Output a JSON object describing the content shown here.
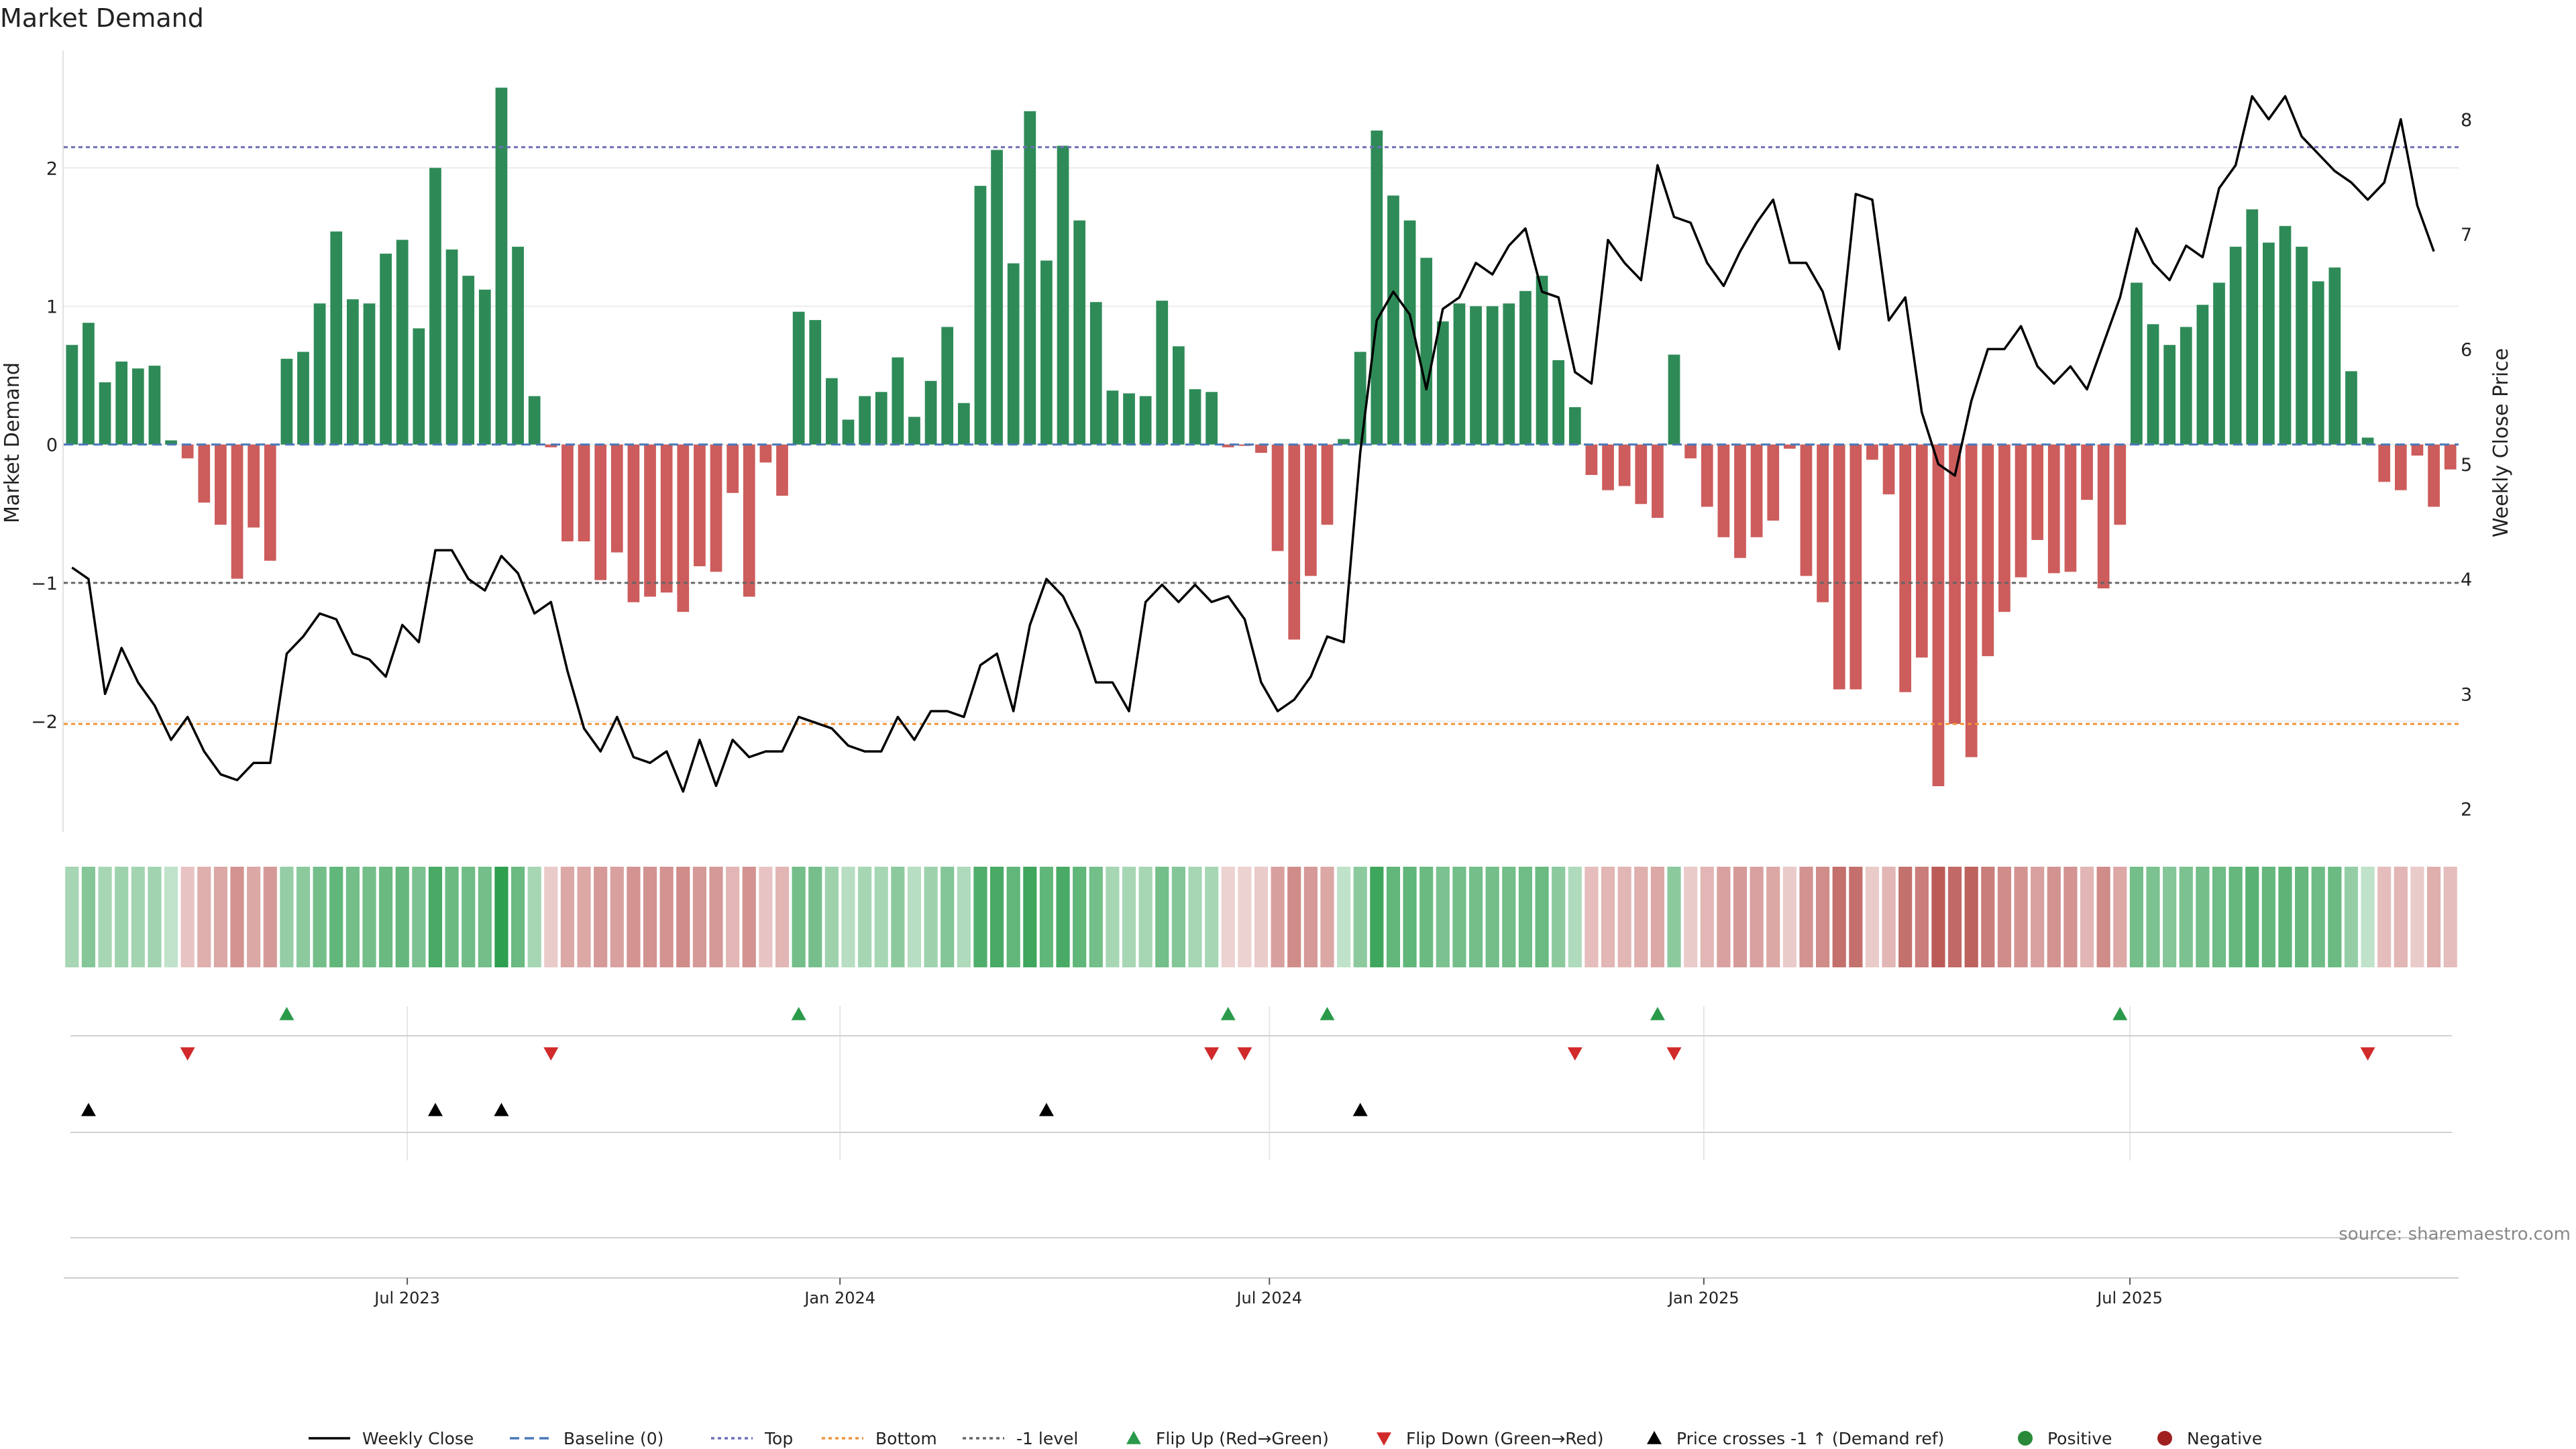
{
  "chart_data": {
    "type": "bar",
    "title": "Market Demand",
    "ylabel": "Market Demand",
    "y2label": "Weekly Close Price",
    "ylim": [
      -2.8,
      2.85
    ],
    "y2lim": [
      1.8,
      8.6
    ],
    "yticks": [
      -2,
      -1,
      0,
      1,
      2
    ],
    "yticklabels": [
      "−2",
      "−1",
      "0",
      "1",
      "2"
    ],
    "y2ticks": [
      2,
      3,
      4,
      5,
      6,
      7,
      8
    ],
    "y2ticklabels": [
      "2",
      "3",
      "4",
      "5",
      "6",
      "7",
      "8"
    ],
    "x_tick_labels": [
      "Jul 2023",
      "Jan 2024",
      "Jul 2024",
      "Jan 2025",
      "Jul 2025"
    ],
    "x_tick_index": [
      20.8,
      47,
      73,
      99.3,
      125.1
    ],
    "reference_lines": {
      "top": 2.15,
      "bottom": -2.02,
      "minus_one": -1.0,
      "baseline": 0
    },
    "demand": [
      0.72,
      0.88,
      0.45,
      0.6,
      0.55,
      0.57,
      0.03,
      -0.1,
      -0.42,
      -0.58,
      -0.97,
      -0.6,
      -0.84,
      0.62,
      0.67,
      1.02,
      1.54,
      1.05,
      1.02,
      1.38,
      1.48,
      0.84,
      2.0,
      1.41,
      1.22,
      1.12,
      2.58,
      1.43,
      0.35,
      -0.02,
      -0.7,
      -0.7,
      -0.98,
      -0.78,
      -1.14,
      -1.1,
      -1.07,
      -1.21,
      -0.88,
      -0.92,
      -0.35,
      -1.1,
      -0.13,
      -0.37,
      0.96,
      0.9,
      0.48,
      0.18,
      0.35,
      0.38,
      0.63,
      0.2,
      0.46,
      0.85,
      0.3,
      1.87,
      2.13,
      1.31,
      2.41,
      1.33,
      2.16,
      1.62,
      1.03,
      0.39,
      0.37,
      0.35,
      1.04,
      0.71,
      0.4,
      0.38,
      -0.02,
      -0.01,
      -0.06,
      -0.77,
      -1.41,
      -0.95,
      -0.58,
      0.04,
      0.67,
      2.27,
      1.8,
      1.62,
      1.35,
      0.89,
      1.02,
      1.0,
      1.0,
      1.02,
      1.11,
      1.22,
      0.61,
      0.27,
      -0.22,
      -0.33,
      -0.3,
      -0.43,
      -0.53,
      0.65,
      -0.1,
      -0.45,
      -0.67,
      -0.82,
      -0.67,
      -0.55,
      -0.03,
      -0.95,
      -1.14,
      -1.77,
      -1.77,
      -0.11,
      -0.36,
      -1.79,
      -1.54,
      -2.47,
      -2.02,
      -2.26,
      -1.53,
      -1.21,
      -0.96,
      -0.69,
      -0.93,
      -0.92,
      -0.4,
      -1.04,
      -0.58,
      1.17,
      0.87,
      0.72,
      0.85,
      1.01,
      1.17,
      1.43,
      1.7,
      1.46,
      1.58,
      1.43,
      1.18,
      1.28,
      0.53,
      0.05,
      -0.27,
      -0.33,
      -0.08,
      -0.45,
      -0.18
    ],
    "close": [
      4.1,
      4.0,
      3.0,
      3.4,
      3.1,
      2.9,
      2.6,
      2.8,
      2.5,
      2.3,
      2.25,
      2.4,
      2.4,
      3.35,
      3.5,
      3.7,
      3.65,
      3.35,
      3.3,
      3.15,
      3.6,
      3.45,
      4.25,
      4.25,
      4.0,
      3.9,
      4.2,
      4.05,
      3.7,
      3.8,
      3.2,
      2.7,
      2.5,
      2.8,
      2.45,
      2.4,
      2.5,
      2.15,
      2.6,
      2.2,
      2.6,
      2.45,
      2.5,
      2.5,
      2.8,
      2.75,
      2.7,
      2.55,
      2.5,
      2.5,
      2.8,
      2.6,
      2.85,
      2.85,
      2.8,
      3.25,
      3.35,
      2.85,
      3.6,
      4.0,
      3.85,
      3.55,
      3.1,
      3.1,
      2.85,
      3.8,
      3.95,
      3.8,
      3.95,
      3.8,
      3.85,
      3.65,
      3.1,
      2.85,
      2.95,
      3.15,
      3.5,
      3.45,
      5.1,
      6.25,
      6.5,
      6.3,
      5.65,
      6.35,
      6.45,
      6.75,
      6.65,
      6.9,
      7.05,
      6.5,
      6.45,
      5.8,
      5.7,
      6.95,
      6.75,
      6.6,
      7.6,
      7.15,
      7.1,
      6.75,
      6.55,
      6.85,
      7.1,
      7.3,
      6.75,
      6.75,
      6.5,
      6.0,
      7.35,
      7.3,
      6.25,
      6.45,
      5.45,
      5.0,
      4.9,
      5.55,
      6.0,
      6.0,
      6.2,
      5.85,
      5.7,
      5.85,
      5.65,
      6.05,
      6.45,
      7.05,
      6.75,
      6.6,
      6.9,
      6.8,
      7.4,
      7.6,
      8.2,
      8.0,
      8.2,
      7.85,
      7.7,
      7.55,
      7.45,
      7.3,
      7.45,
      8.0,
      7.25,
      6.85
    ],
    "heat_levels": [
      0.3,
      0.5,
      0.3,
      0.35,
      0.32,
      0.33,
      0.15,
      0.2,
      0.35,
      0.4,
      0.55,
      0.4,
      0.5,
      0.4,
      0.45,
      0.6,
      0.7,
      0.6,
      0.6,
      0.65,
      0.68,
      0.55,
      0.85,
      0.65,
      0.62,
      0.6,
      1.0,
      0.65,
      0.3,
      0.15,
      0.4,
      0.4,
      0.5,
      0.45,
      0.55,
      0.55,
      0.55,
      0.6,
      0.5,
      0.5,
      0.3,
      0.55,
      0.2,
      0.3,
      0.6,
      0.58,
      0.35,
      0.2,
      0.3,
      0.3,
      0.45,
      0.2,
      0.35,
      0.5,
      0.25,
      0.8,
      0.85,
      0.7,
      0.9,
      0.7,
      0.85,
      0.7,
      0.6,
      0.3,
      0.3,
      0.3,
      0.6,
      0.5,
      0.3,
      0.3,
      0.1,
      0.1,
      0.15,
      0.45,
      0.6,
      0.5,
      0.4,
      0.15,
      0.45,
      0.9,
      0.7,
      0.7,
      0.65,
      0.55,
      0.6,
      0.6,
      0.6,
      0.6,
      0.62,
      0.65,
      0.45,
      0.25,
      0.25,
      0.3,
      0.3,
      0.35,
      0.4,
      0.45,
      0.15,
      0.3,
      0.45,
      0.5,
      0.45,
      0.4,
      0.15,
      0.55,
      0.6,
      0.8,
      0.8,
      0.15,
      0.3,
      0.8,
      0.7,
      0.95,
      0.85,
      0.9,
      0.7,
      0.6,
      0.55,
      0.45,
      0.55,
      0.55,
      0.3,
      0.6,
      0.4,
      0.6,
      0.55,
      0.5,
      0.55,
      0.6,
      0.62,
      0.68,
      0.75,
      0.68,
      0.72,
      0.68,
      0.62,
      0.65,
      0.4,
      0.15,
      0.25,
      0.3,
      0.15,
      0.35,
      0.25
    ],
    "flip_up_index": [
      13,
      44,
      70,
      76,
      96,
      124
    ],
    "flip_down_index": [
      7,
      29,
      69,
      71,
      91,
      97,
      139
    ],
    "cross_index": [
      1,
      22,
      26,
      59,
      78
    ],
    "watermark": "source: sharemaestro.com",
    "legend": [
      {
        "label": "Weekly Close",
        "style": "solid",
        "color": "#000000"
      },
      {
        "label": "Baseline (0)",
        "style": "dashed",
        "color": "#4a78b8"
      },
      {
        "label": "Top",
        "style": "dotted",
        "color": "#6f6fb8"
      },
      {
        "label": "Bottom",
        "style": "dotted",
        "color": "#f0943a"
      },
      {
        "label": "-1 level",
        "style": "dotted",
        "color": "#666666"
      },
      {
        "label": "Flip Up (Red→Green)",
        "style": "tri-up",
        "color": "#2a9a4a"
      },
      {
        "label": "Flip Down (Green→Red)",
        "style": "tri-down",
        "color": "#d02a2a"
      },
      {
        "label": "Price crosses -1 ↑ (Demand ref)",
        "style": "tri-up",
        "color": "#000000"
      },
      {
        "label": "Positive",
        "style": "dot",
        "color": "#2a8a3a"
      },
      {
        "label": "Negative",
        "style": "dot",
        "color": "#a02020"
      }
    ],
    "colors": {
      "positive_bar": "#2e8b57",
      "negative_bar": "#cd5c5c",
      "heat_positive": "#2e9e4f",
      "heat_negative": "#b85450",
      "top_line": "#6f6fb8",
      "bottom_line": "#f0943a",
      "minus_one_line": "#666666",
      "baseline_line": "#4a78b8",
      "close_line": "#000000",
      "flip_up": "#2a9a4a",
      "flip_down": "#d02a2a",
      "cross": "#000000"
    }
  }
}
